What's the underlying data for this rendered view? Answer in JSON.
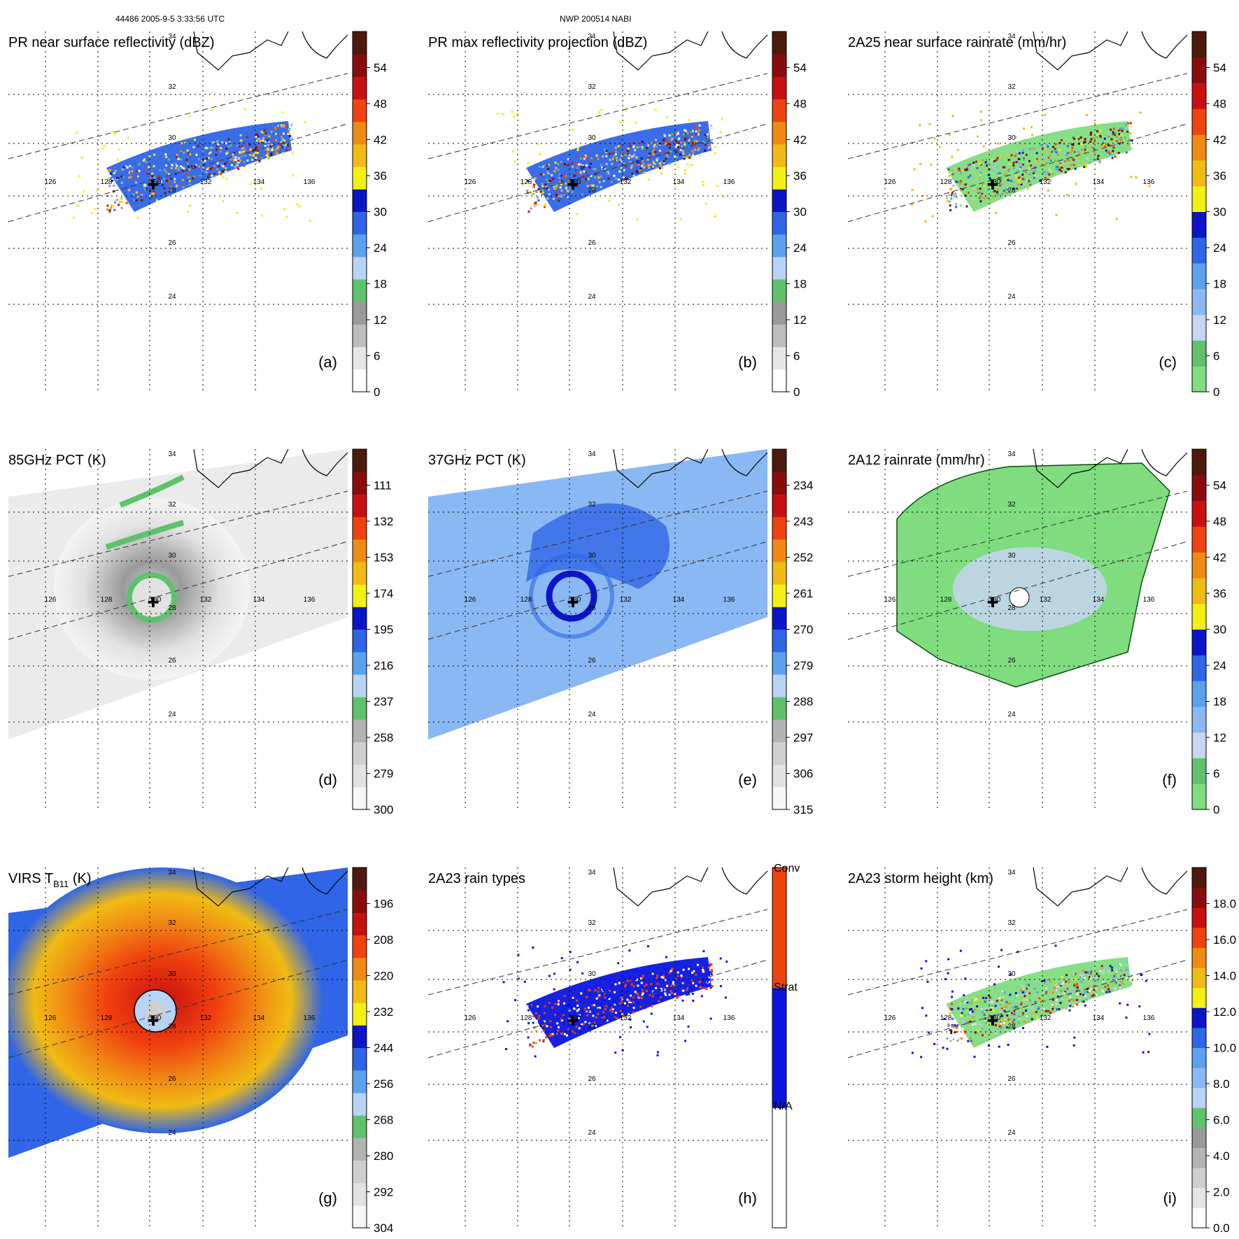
{
  "header": {
    "left": "44486 2005-9-5 3:33:56 UTC",
    "center": "NWP 200514 NABI"
  },
  "lon_ticks": [
    "126",
    "128",
    "130",
    "132",
    "134",
    "136"
  ],
  "lat_ticks": [
    "34",
    "32",
    "30",
    "28",
    "26",
    "24"
  ],
  "panels": [
    {
      "id": "a",
      "title": "PR near surface reflectivity (dBZ)",
      "letter": "(a)",
      "field": "swath",
      "scheme": "dbz",
      "cbar": {
        "ticks": [
          "0",
          "6",
          "12",
          "18",
          "24",
          "30",
          "36",
          "42",
          "48",
          "54"
        ],
        "colors": [
          "#ffffff",
          "#e6e6e6",
          "#bdbdbd",
          "#9a9a9a",
          "#5fc26b",
          "#b7d3f5",
          "#5aa2ee",
          "#2f65e6",
          "#0b15c8",
          "#f3f012",
          "#f0bb14",
          "#f08a14",
          "#f0420f",
          "#c81010",
          "#8a0d0d",
          "#4d1a0d"
        ]
      }
    },
    {
      "id": "b",
      "title": "PR max reflectivity projection (dBZ)",
      "letter": "(b)",
      "field": "swath",
      "scheme": "dbz",
      "cbar": {
        "ticks": [
          "0",
          "6",
          "12",
          "18",
          "24",
          "30",
          "36",
          "42",
          "48",
          "54"
        ],
        "colors": [
          "#ffffff",
          "#e6e6e6",
          "#bdbdbd",
          "#9a9a9a",
          "#5fc26b",
          "#b7d3f5",
          "#5aa2ee",
          "#2f65e6",
          "#0b15c8",
          "#f3f012",
          "#f0bb14",
          "#f08a14",
          "#f0420f",
          "#c81010",
          "#8a0d0d",
          "#4d1a0d"
        ]
      }
    },
    {
      "id": "c",
      "title": "2A25 near surface rainrate (mm/hr)",
      "letter": "(c)",
      "field": "swath",
      "scheme": "rain",
      "cbar": {
        "ticks": [
          "0",
          "6",
          "12",
          "18",
          "24",
          "30",
          "36",
          "42",
          "48",
          "54"
        ],
        "colors": [
          "#7fdd80",
          "#5fc26b",
          "#c5d5f2",
          "#8ab8f2",
          "#5aa2ee",
          "#2f65e6",
          "#0b15c8",
          "#f3f012",
          "#f0bb14",
          "#f08a14",
          "#f0420f",
          "#c81010",
          "#8a0d0d",
          "#4d1a0d"
        ]
      }
    },
    {
      "id": "d",
      "title": "85GHz PCT (K)",
      "letter": "(d)",
      "field": "pmw",
      "scheme": "pct85",
      "cbar": {
        "ticks": [
          "300",
          "279",
          "258",
          "237",
          "216",
          "195",
          "174",
          "153",
          "132",
          "111"
        ],
        "colors": [
          "#f7f7f7",
          "#e2e2e2",
          "#cfcfcf",
          "#b3b3b3",
          "#5fc26b",
          "#b7d3f5",
          "#5aa2ee",
          "#2f65e6",
          "#0b15c8",
          "#f3f012",
          "#f0bb14",
          "#f08a14",
          "#f0420f",
          "#c81010",
          "#8a0d0d",
          "#4d1a0d"
        ]
      }
    },
    {
      "id": "e",
      "title": "37GHz PCT (K)",
      "letter": "(e)",
      "field": "pmw",
      "scheme": "pct37",
      "cbar": {
        "ticks": [
          "315",
          "306",
          "297",
          "288",
          "279",
          "270",
          "261",
          "252",
          "243",
          "234"
        ],
        "colors": [
          "#f7f7f7",
          "#e2e2e2",
          "#cfcfcf",
          "#b3b3b3",
          "#5fc26b",
          "#b7d3f5",
          "#5aa2ee",
          "#2f65e6",
          "#0b15c8",
          "#f3f012",
          "#f0bb14",
          "#f08a14",
          "#f0420f",
          "#c81010",
          "#8a0d0d",
          "#4d1a0d"
        ]
      }
    },
    {
      "id": "f",
      "title": "2A12 rainrate (mm/hr)",
      "letter": "(f)",
      "field": "pmwrain",
      "scheme": "rain",
      "cbar": {
        "ticks": [
          "0",
          "6",
          "12",
          "18",
          "24",
          "30",
          "36",
          "42",
          "48",
          "54"
        ],
        "colors": [
          "#7fdd80",
          "#5fc26b",
          "#c5d5f2",
          "#8ab8f2",
          "#5aa2ee",
          "#2f65e6",
          "#0b15c8",
          "#f3f012",
          "#f0bb14",
          "#f08a14",
          "#f0420f",
          "#c81010",
          "#8a0d0d",
          "#4d1a0d"
        ]
      }
    },
    {
      "id": "g",
      "title": "VIRS T",
      "title_sub": "B11",
      "title_tail": " (K)",
      "letter": "(g)",
      "field": "virs",
      "scheme": "virs",
      "cbar": {
        "ticks": [
          "304",
          "292",
          "280",
          "268",
          "256",
          "244",
          "232",
          "220",
          "208",
          "196"
        ],
        "colors": [
          "#f7f7f7",
          "#e2e2e2",
          "#cfcfcf",
          "#b3b3b3",
          "#5fc26b",
          "#b7d3f5",
          "#5aa2ee",
          "#2f65e6",
          "#0b15c8",
          "#f3f012",
          "#f0bb14",
          "#f08a14",
          "#f0420f",
          "#c81010",
          "#8a0d0d",
          "#4d1a0d"
        ]
      }
    },
    {
      "id": "h",
      "title": "2A23 rain types",
      "letter": "(h)",
      "field": "swath",
      "scheme": "types",
      "cbar": {
        "ticks": [
          "N/A",
          "Strat",
          "Conv"
        ],
        "colors": [
          "#ffffff",
          "#0b15e0",
          "#f0420f"
        ]
      }
    },
    {
      "id": "i",
      "title": "2A23 storm height (km)",
      "letter": "(i)",
      "field": "swath",
      "scheme": "height",
      "cbar": {
        "ticks": [
          "0.0",
          "2.0",
          "4.0",
          "6.0",
          "8.0",
          "10.0",
          "12.0",
          "14.0",
          "16.0",
          "18.0"
        ],
        "colors": [
          "#ffffff",
          "#e6e6e6",
          "#cfcfcf",
          "#b3b3b3",
          "#9a9a9a",
          "#5fc26b",
          "#b7d3f5",
          "#8ab8f2",
          "#5aa2ee",
          "#2f65e6",
          "#0b15c8",
          "#f3f012",
          "#f0bb14",
          "#f08a14",
          "#f0420f",
          "#c81010",
          "#8a0d0d",
          "#4d1a0d"
        ]
      }
    }
  ]
}
